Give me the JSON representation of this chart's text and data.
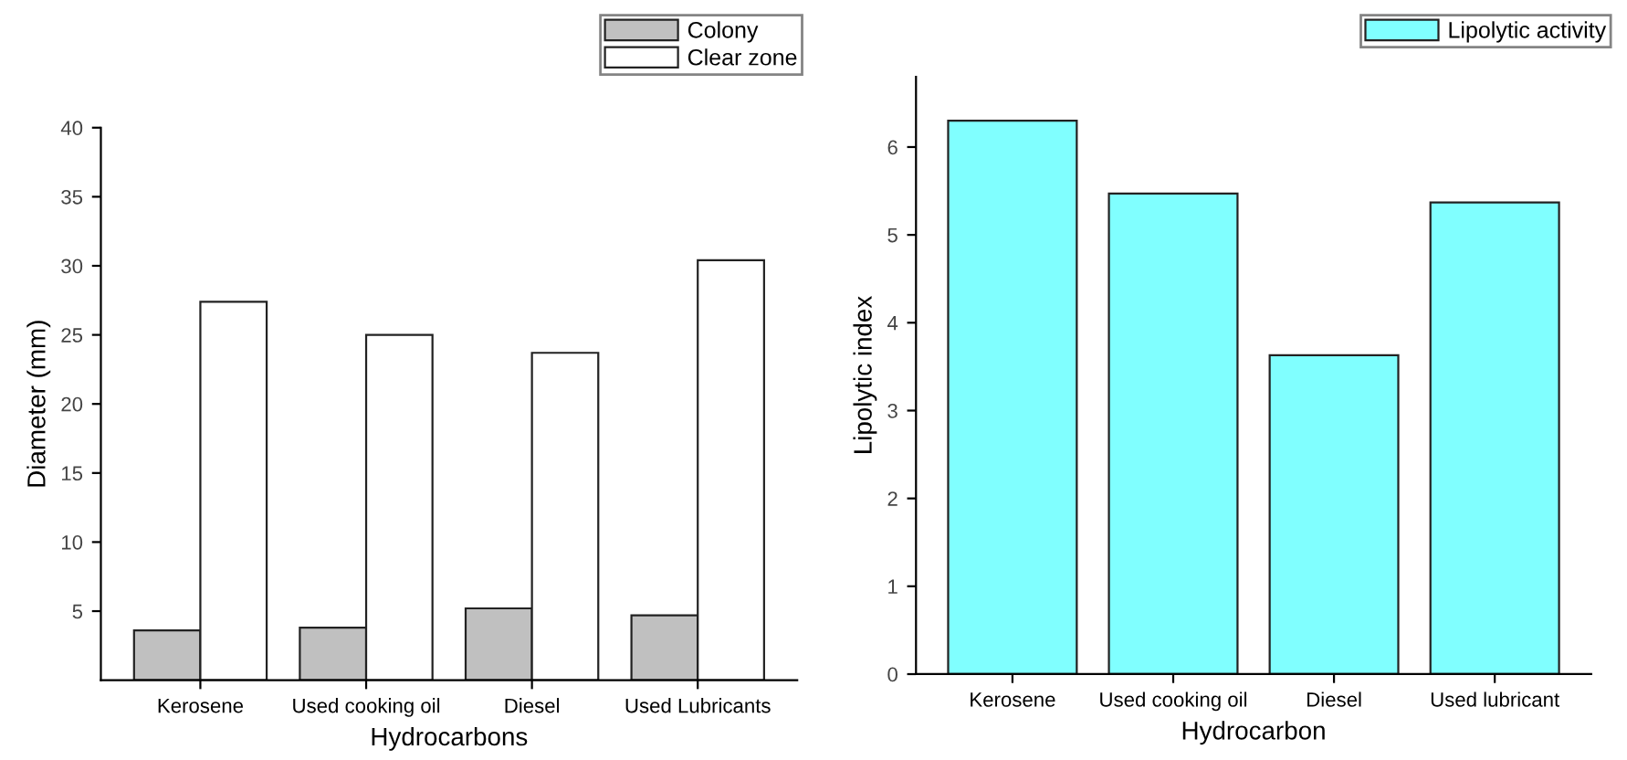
{
  "chart_data": [
    {
      "type": "bar",
      "xlabel": "Hydrocarbons",
      "ylabel": "Diameter (mm)",
      "categories": [
        "Kerosene",
        "Used cooking oil",
        "Diesel",
        "Used Lubricants"
      ],
      "series": [
        {
          "name": "Colony",
          "color": "#c0c0c0",
          "values": [
            3.6,
            3.8,
            5.2,
            4.7
          ]
        },
        {
          "name": "Clear zone",
          "color": "#ffffff",
          "values": [
            27.4,
            25.0,
            23.7,
            30.4
          ]
        }
      ],
      "ylim": [
        0,
        40
      ],
      "yticks": [
        5,
        10,
        15,
        20,
        25,
        30,
        35,
        40
      ],
      "legend": "top right",
      "grid": false
    },
    {
      "type": "bar",
      "xlabel": "Hydrocarbon",
      "ylabel": "Lipolytic index",
      "categories": [
        "Kerosene",
        "Used cooking oil",
        "Diesel",
        "Used lubricant"
      ],
      "series": [
        {
          "name": "Lipolytic activity",
          "color": "#80ffff",
          "values": [
            6.3,
            5.47,
            3.63,
            5.37
          ]
        }
      ],
      "ylim": [
        0,
        6.8
      ],
      "yticks": [
        0,
        1,
        2,
        3,
        4,
        5,
        6
      ],
      "legend": "top right",
      "grid": false
    }
  ]
}
